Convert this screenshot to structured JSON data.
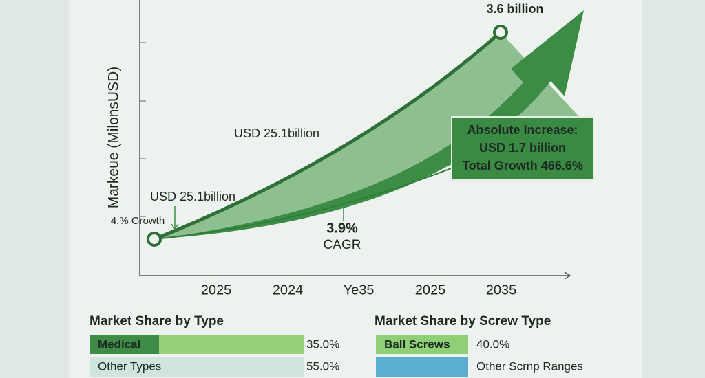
{
  "chart": {
    "y_axis_label": "Markeue (MilonsUSD)",
    "x_labels": [
      "2025",
      "2024",
      "Ye35",
      "2025",
      "2035"
    ],
    "annotations": {
      "end_value": "3.6 billion",
      "mid_label": "USD 25.1billion",
      "start_label": "USD 25.1billion",
      "growth": "4.% Growth",
      "cagr_value": "3.9%",
      "cagr_label": "CAGR"
    },
    "callout": [
      "Absolute Increase:",
      "USD 1.7 billion",
      "Total Growth 466.6%"
    ]
  },
  "type_share": {
    "title": "Market Share by Type",
    "rows": [
      [
        "Medical",
        "35.0%"
      ],
      [
        "Other Types",
        "55.0%"
      ]
    ]
  },
  "screw_share": {
    "title": "Market Share by Screw Type",
    "rows": [
      [
        "Ball Screws",
        "40.0%"
      ],
      [
        "Other Scrnp Ranges"
      ]
    ]
  }
}
